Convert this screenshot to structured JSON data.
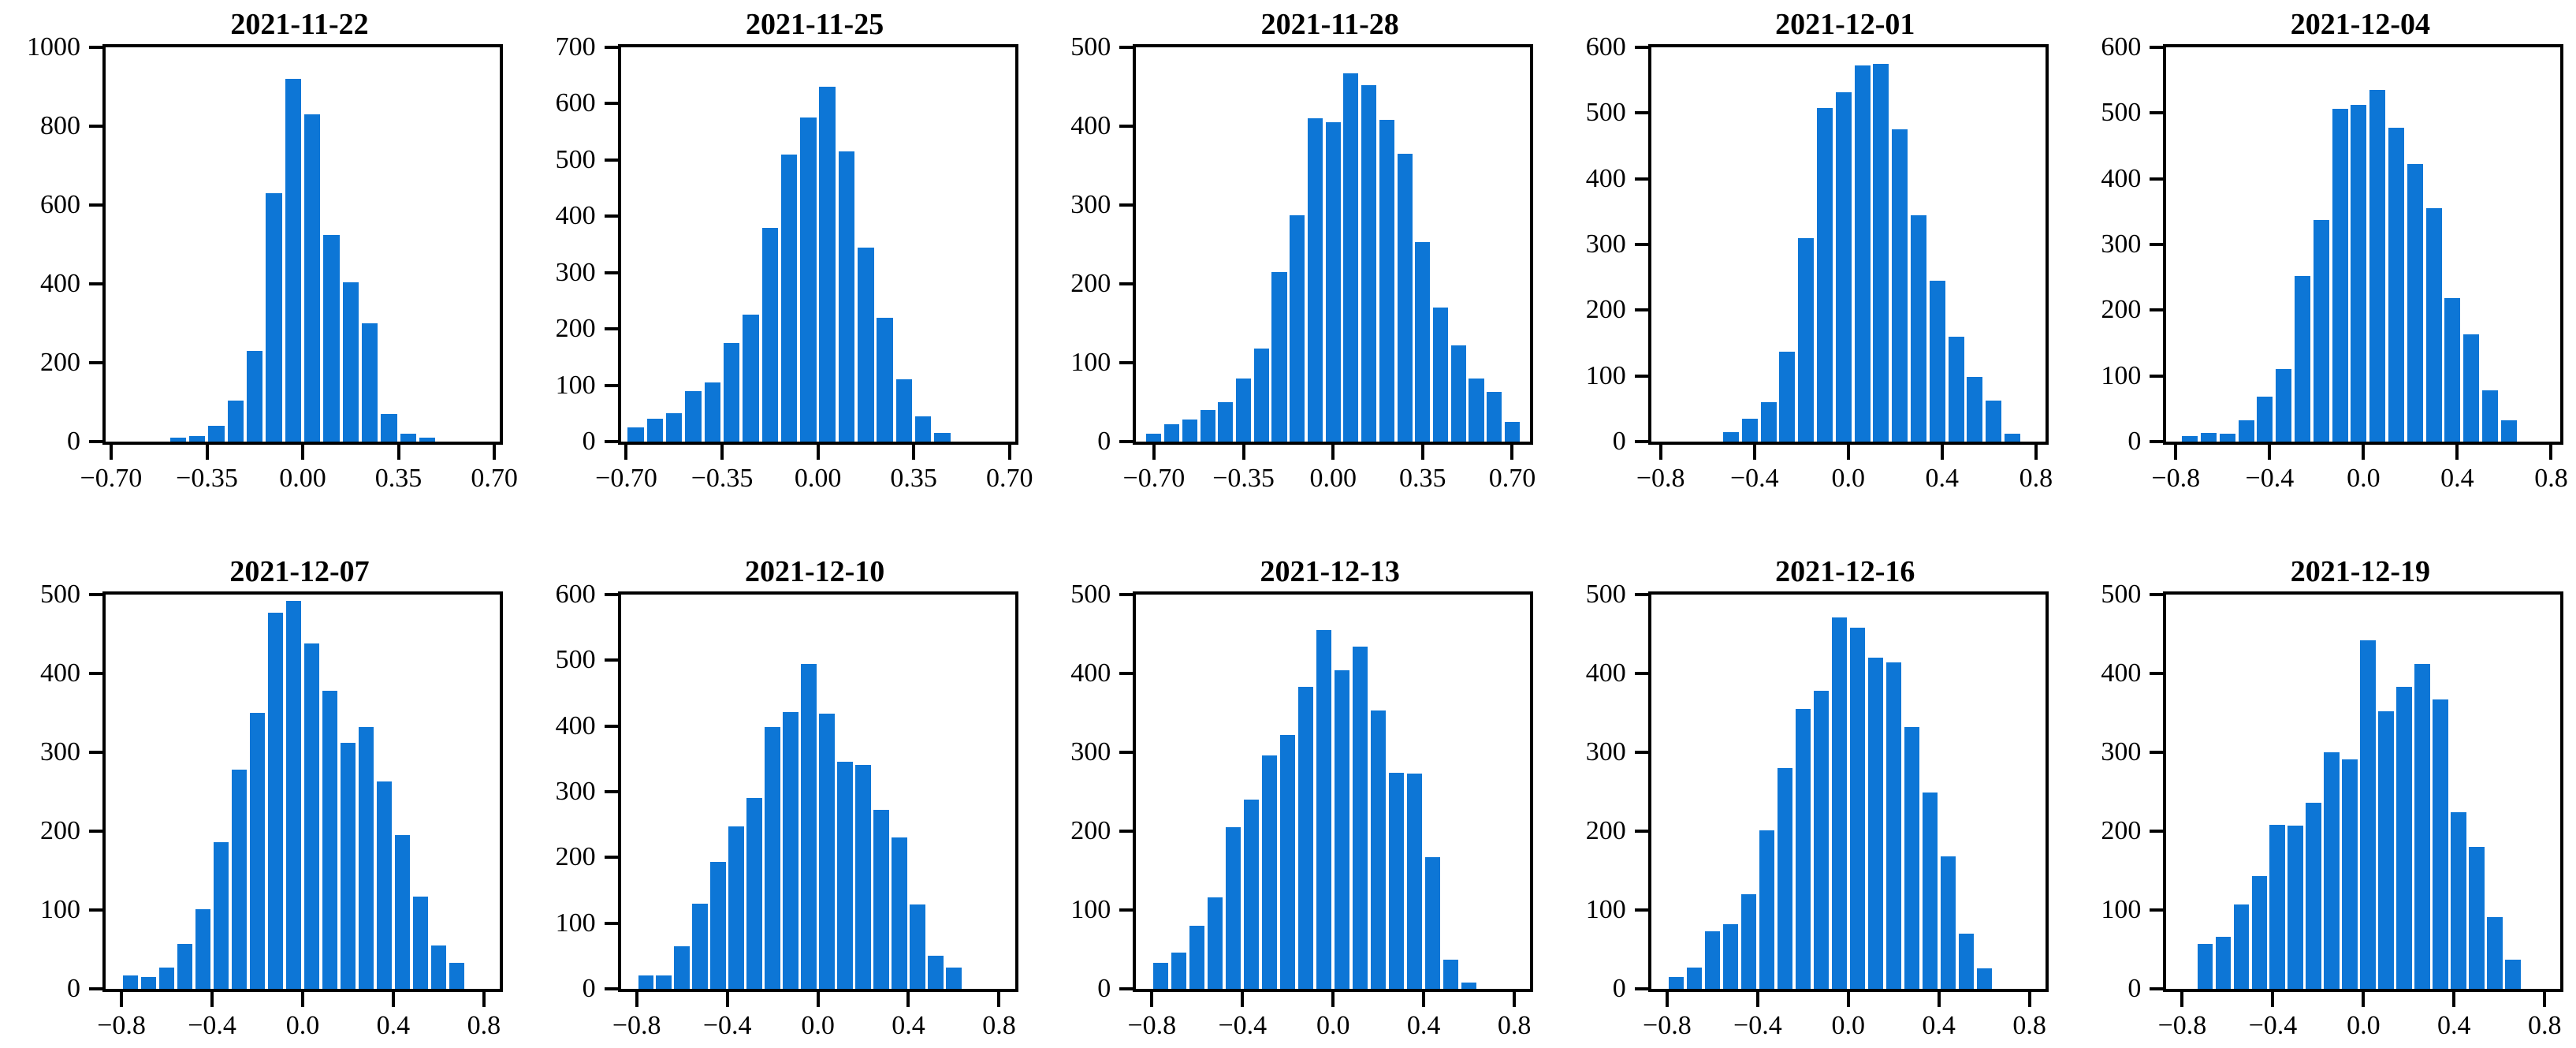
{
  "bar_color": "#0d76d6",
  "axis_color": "#000000",
  "background_color": "#ffffff",
  "chart_data": [
    {
      "type": "bar",
      "title": "2021-11-22",
      "ylim": [
        0,
        1000
      ],
      "yticks": [
        0,
        200,
        400,
        600,
        800,
        1000
      ],
      "ytick_labels": [
        "0",
        "200",
        "400",
        "600",
        "800",
        "1000"
      ],
      "xlim": [
        -0.72,
        0.72
      ],
      "xticks": [
        -0.7,
        -0.35,
        0.0,
        0.35,
        0.7
      ],
      "xtick_labels": [
        "−0.70",
        "−0.35",
        "0.00",
        "0.35",
        "0.70"
      ],
      "bins": {
        "start": -0.455,
        "step": 0.07
      },
      "counts": [
        10,
        15,
        40,
        105,
        230,
        630,
        920,
        830,
        525,
        405,
        300,
        70,
        20,
        10
      ]
    },
    {
      "type": "bar",
      "title": "2021-11-25",
      "ylim": [
        0,
        700
      ],
      "yticks": [
        0,
        100,
        200,
        300,
        400,
        500,
        600,
        700
      ],
      "ytick_labels": [
        "0",
        "100",
        "200",
        "300",
        "400",
        "500",
        "600",
        "700"
      ],
      "xlim": [
        -0.72,
        0.72
      ],
      "xticks": [
        -0.7,
        -0.35,
        0.0,
        0.35,
        0.7
      ],
      "xtick_labels": [
        "−0.70",
        "−0.35",
        "0.00",
        "0.35",
        "0.70"
      ],
      "bins": {
        "start": -0.665,
        "step": 0.07
      },
      "counts": [
        25,
        40,
        50,
        90,
        105,
        175,
        225,
        380,
        510,
        575,
        630,
        515,
        345,
        220,
        110,
        45,
        15
      ]
    },
    {
      "type": "bar",
      "title": "2021-11-28",
      "ylim": [
        0,
        500
      ],
      "yticks": [
        0,
        100,
        200,
        300,
        400,
        500
      ],
      "ytick_labels": [
        "0",
        "100",
        "200",
        "300",
        "400",
        "500"
      ],
      "xlim": [
        -0.77,
        0.77
      ],
      "xticks": [
        -0.7,
        -0.35,
        0.0,
        0.35,
        0.7
      ],
      "xtick_labels": [
        "−0.70",
        "−0.35",
        "0.00",
        "0.35",
        "0.70"
      ],
      "bins": {
        "start": -0.7,
        "step": 0.07
      },
      "counts": [
        10,
        22,
        28,
        40,
        50,
        80,
        118,
        215,
        287,
        410,
        405,
        467,
        452,
        408,
        365,
        253,
        170,
        122,
        80,
        63,
        25
      ]
    },
    {
      "type": "bar",
      "title": "2021-12-01",
      "ylim": [
        0,
        600
      ],
      "yticks": [
        0,
        100,
        200,
        300,
        400,
        500,
        600
      ],
      "ytick_labels": [
        "0",
        "100",
        "200",
        "300",
        "400",
        "500",
        "600"
      ],
      "xlim": [
        -0.84,
        0.84
      ],
      "xticks": [
        -0.8,
        -0.4,
        0.0,
        0.4,
        0.8
      ],
      "xtick_labels": [
        "−0.8",
        "−0.4",
        "0.0",
        "0.4",
        "0.8"
      ],
      "bins": {
        "start": -0.5,
        "step": 0.08
      },
      "counts": [
        15,
        35,
        60,
        137,
        310,
        508,
        532,
        572,
        575,
        475,
        345,
        245,
        160,
        98,
        63,
        12
      ]
    },
    {
      "type": "bar",
      "title": "2021-12-04",
      "ylim": [
        0,
        600
      ],
      "yticks": [
        0,
        100,
        200,
        300,
        400,
        500,
        600
      ],
      "ytick_labels": [
        "0",
        "100",
        "200",
        "300",
        "400",
        "500",
        "600"
      ],
      "xlim": [
        -0.84,
        0.84
      ],
      "xticks": [
        -0.8,
        -0.4,
        0.0,
        0.4,
        0.8
      ],
      "xtick_labels": [
        "−0.8",
        "−0.4",
        "0.0",
        "0.4",
        "0.8"
      ],
      "bins": {
        "start": -0.74,
        "step": 0.08
      },
      "counts": [
        8,
        13,
        12,
        33,
        68,
        110,
        252,
        337,
        507,
        512,
        535,
        478,
        423,
        355,
        218,
        163,
        78,
        33
      ]
    },
    {
      "type": "bar",
      "title": "2021-12-07",
      "ylim": [
        0,
        500
      ],
      "yticks": [
        0,
        100,
        200,
        300,
        400,
        500
      ],
      "ytick_labels": [
        "0",
        "100",
        "200",
        "300",
        "400",
        "500"
      ],
      "xlim": [
        -0.87,
        0.87
      ],
      "xticks": [
        -0.8,
        -0.4,
        0.0,
        0.4,
        0.8
      ],
      "xtick_labels": [
        "−0.8",
        "−0.4",
        "0.0",
        "0.4",
        "0.8"
      ],
      "bins": {
        "start": -0.76,
        "step": 0.08
      },
      "counts": [
        17,
        15,
        27,
        57,
        101,
        186,
        278,
        350,
        477,
        492,
        438,
        378,
        312,
        332,
        263,
        195,
        117,
        55,
        33
      ]
    },
    {
      "type": "bar",
      "title": "2021-12-10",
      "ylim": [
        0,
        600
      ],
      "yticks": [
        0,
        100,
        200,
        300,
        400,
        500,
        600
      ],
      "ytick_labels": [
        "0",
        "100",
        "200",
        "300",
        "400",
        "500",
        "600"
      ],
      "xlim": [
        -0.87,
        0.87
      ],
      "xticks": [
        -0.8,
        -0.4,
        0.0,
        0.4,
        0.8
      ],
      "xtick_labels": [
        "−0.8",
        "−0.4",
        "0.0",
        "0.4",
        "0.8"
      ],
      "bins": {
        "start": -0.76,
        "step": 0.08
      },
      "counts": [
        20,
        20,
        65,
        130,
        193,
        247,
        291,
        398,
        421,
        494,
        419,
        346,
        341,
        272,
        231,
        129,
        50,
        33
      ]
    },
    {
      "type": "bar",
      "title": "2021-12-13",
      "ylim": [
        0,
        500
      ],
      "yticks": [
        0,
        100,
        200,
        300,
        400,
        500
      ],
      "ytick_labels": [
        "0",
        "100",
        "200",
        "300",
        "400",
        "500"
      ],
      "xlim": [
        -0.87,
        0.87
      ],
      "xticks": [
        -0.8,
        -0.4,
        0.0,
        0.4,
        0.8
      ],
      "xtick_labels": [
        "−0.8",
        "−0.4",
        "0.0",
        "0.4",
        "0.8"
      ],
      "bins": {
        "start": -0.76,
        "step": 0.08
      },
      "counts": [
        33,
        46,
        80,
        116,
        205,
        240,
        296,
        322,
        383,
        455,
        404,
        434,
        353,
        274,
        273,
        167,
        37,
        8
      ]
    },
    {
      "type": "bar",
      "title": "2021-12-16",
      "ylim": [
        0,
        500
      ],
      "yticks": [
        0,
        100,
        200,
        300,
        400,
        500
      ],
      "ytick_labels": [
        "0",
        "100",
        "200",
        "300",
        "400",
        "500"
      ],
      "xlim": [
        -0.87,
        0.87
      ],
      "xticks": [
        -0.8,
        -0.4,
        0.0,
        0.4,
        0.8
      ],
      "xtick_labels": [
        "−0.8",
        "−0.4",
        "0.0",
        "0.4",
        "0.8"
      ],
      "bins": {
        "start": -0.76,
        "step": 0.08
      },
      "counts": [
        15,
        27,
        73,
        82,
        120,
        201,
        280,
        355,
        378,
        471,
        458,
        420,
        414,
        332,
        249,
        168,
        70,
        26
      ]
    },
    {
      "type": "bar",
      "title": "2021-12-19",
      "ylim": [
        0,
        500
      ],
      "yticks": [
        0,
        100,
        200,
        300,
        400,
        500
      ],
      "ytick_labels": [
        "0",
        "100",
        "200",
        "300",
        "400",
        "500"
      ],
      "xlim": [
        -0.87,
        0.87
      ],
      "xticks": [
        -0.8,
        -0.4,
        0.0,
        0.4,
        0.8
      ],
      "xtick_labels": [
        "−0.8",
        "−0.4",
        "0.0",
        "0.4",
        "0.8"
      ],
      "bins": {
        "start": -0.7,
        "step": 0.08
      },
      "counts": [
        57,
        66,
        107,
        143,
        208,
        207,
        236,
        300,
        291,
        442,
        352,
        383,
        412,
        367,
        224,
        180,
        91,
        37
      ]
    }
  ]
}
